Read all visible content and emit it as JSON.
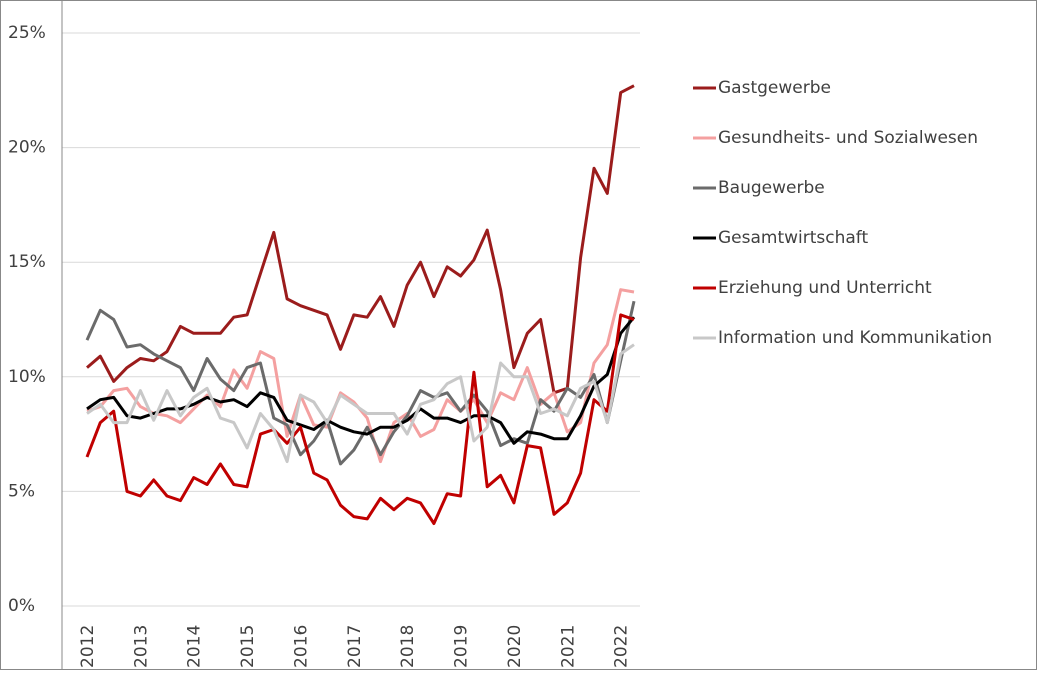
{
  "chart_data": {
    "type": "line",
    "categories": [
      "2012",
      null,
      null,
      null,
      "2013",
      null,
      null,
      null,
      "2014",
      null,
      null,
      null,
      "2015",
      null,
      null,
      null,
      "2016",
      null,
      null,
      null,
      "2017",
      null,
      null,
      null,
      "2018",
      null,
      null,
      null,
      "2019",
      null,
      null,
      null,
      "2020",
      null,
      null,
      null,
      "2021",
      null,
      null,
      null,
      "2022",
      null
    ],
    "ylim": [
      0,
      25
    ],
    "yticks": [
      {
        "value": 0,
        "label": "0%"
      },
      {
        "value": 5,
        "label": "5%"
      },
      {
        "value": 10,
        "label": "10%"
      },
      {
        "value": 15,
        "label": "15%"
      },
      {
        "value": 20,
        "label": "20%"
      },
      {
        "value": 25,
        "label": "25%"
      }
    ],
    "grid": true,
    "legend": "right",
    "series": [
      {
        "name": "Gastgewerbe",
        "color": "#9b1c1c",
        "values": [
          10.4,
          10.9,
          9.8,
          10.4,
          10.8,
          10.7,
          11.1,
          12.2,
          11.9,
          11.9,
          11.9,
          12.6,
          12.7,
          14.5,
          16.3,
          13.4,
          13.1,
          12.9,
          12.7,
          11.2,
          12.7,
          12.6,
          13.5,
          12.2,
          14.0,
          15.0,
          13.5,
          14.8,
          14.4,
          15.1,
          16.4,
          13.8,
          10.4,
          11.9,
          12.5,
          9.3,
          9.5,
          15.2,
          19.1,
          18.0,
          22.4,
          22.7
        ]
      },
      {
        "name": "Gesundheits- und Sozialwesen",
        "color": "#f4a0a0",
        "values": [
          8.5,
          8.7,
          9.4,
          9.5,
          8.7,
          8.4,
          8.3,
          8.0,
          8.6,
          9.2,
          8.7,
          10.3,
          9.5,
          11.1,
          10.8,
          7.4,
          9.2,
          7.9,
          7.8,
          9.3,
          8.9,
          8.2,
          6.3,
          8.0,
          8.4,
          7.4,
          7.7,
          9.0,
          8.5,
          9.0,
          8.0,
          9.3,
          9.0,
          10.4,
          8.8,
          9.3,
          7.6,
          8.0,
          10.6,
          11.4,
          13.8,
          13.7
        ]
      },
      {
        "name": "Baugewerbe",
        "color": "#6b6b6b",
        "values": [
          11.6,
          12.9,
          12.5,
          11.3,
          11.4,
          11.0,
          10.7,
          10.4,
          9.4,
          10.8,
          9.9,
          9.4,
          10.4,
          10.6,
          8.2,
          7.9,
          6.6,
          7.2,
          8.1,
          6.2,
          6.8,
          7.8,
          6.6,
          7.6,
          8.3,
          9.4,
          9.1,
          9.3,
          8.5,
          9.2,
          8.5,
          7.0,
          7.3,
          7.1,
          9.0,
          8.5,
          9.5,
          9.1,
          10.1,
          8.0,
          10.7,
          13.3
        ]
      },
      {
        "name": "Gesamtwirtschaft",
        "color": "#000000",
        "values": [
          8.6,
          9.0,
          9.1,
          8.3,
          8.2,
          8.4,
          8.6,
          8.6,
          8.8,
          9.1,
          8.9,
          9.0,
          8.7,
          9.3,
          9.1,
          8.1,
          7.9,
          7.7,
          8.1,
          7.8,
          7.6,
          7.5,
          7.8,
          7.8,
          8.1,
          8.6,
          8.2,
          8.2,
          8.0,
          8.3,
          8.3,
          8.0,
          7.1,
          7.6,
          7.5,
          7.3,
          7.3,
          8.3,
          9.6,
          10.1,
          11.9,
          12.6
        ]
      },
      {
        "name": "Erziehung und Unterricht",
        "color": "#c00000",
        "values": [
          6.5,
          8.0,
          8.5,
          5.0,
          4.8,
          5.5,
          4.8,
          4.6,
          5.6,
          5.3,
          6.2,
          5.3,
          5.2,
          7.5,
          7.7,
          7.1,
          7.8,
          5.8,
          5.5,
          4.4,
          3.9,
          3.8,
          4.7,
          4.2,
          4.7,
          4.5,
          3.6,
          4.9,
          4.8,
          10.2,
          5.2,
          5.7,
          4.5,
          7.0,
          6.9,
          4.0,
          4.5,
          5.8,
          9.0,
          8.5,
          12.7,
          12.5
        ]
      },
      {
        "name": "Information und Kommunikation",
        "color": "#c8c8c8",
        "values": [
          8.4,
          8.8,
          8.0,
          8.0,
          9.4,
          8.1,
          9.4,
          8.3,
          9.1,
          9.5,
          8.2,
          8.0,
          6.9,
          8.4,
          7.7,
          6.3,
          9.2,
          8.9,
          8.0,
          9.2,
          8.8,
          8.4,
          8.4,
          8.4,
          7.5,
          8.8,
          9.0,
          9.7,
          10.0,
          7.2,
          7.8,
          10.6,
          10.0,
          10.0,
          8.4,
          8.6,
          8.3,
          9.5,
          9.8,
          8.0,
          11.0,
          11.4
        ]
      }
    ]
  }
}
